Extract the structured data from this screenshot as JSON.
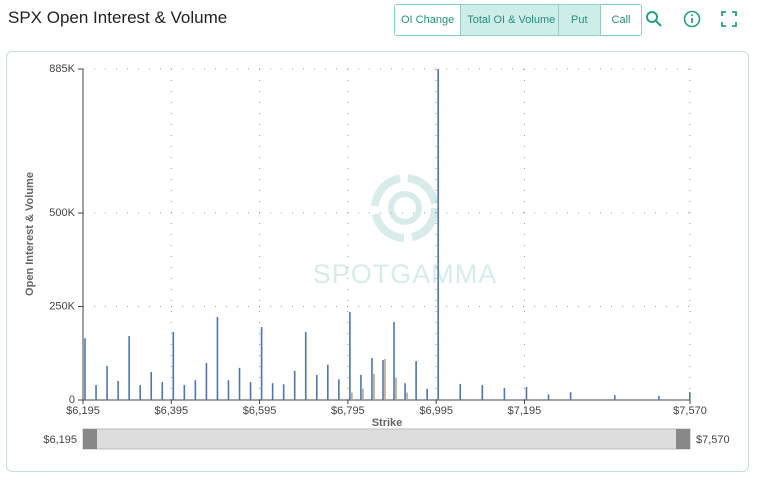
{
  "header": {
    "title": "SPX Open Interest & Volume"
  },
  "toolbar": {
    "mode_buttons": [
      "OI Change",
      "Total OI & Volume"
    ],
    "side_buttons": [
      "Put",
      "Call"
    ]
  },
  "chart_data": {
    "type": "bar",
    "watermark": "SPOTGAMMA",
    "y_label": "Open Interest & Volume",
    "x_label": "Strike",
    "x": [
      6200,
      6225,
      6250,
      6275,
      6300,
      6325,
      6350,
      6375,
      6400,
      6425,
      6450,
      6475,
      6500,
      6525,
      6550,
      6575,
      6600,
      6625,
      6650,
      6675,
      6700,
      6725,
      6750,
      6775,
      6800,
      6825,
      6850,
      6875,
      6900,
      6925,
      6950,
      6975,
      7000,
      7050,
      7100,
      7150,
      7200,
      7250,
      7300,
      7400,
      7500,
      7570
    ],
    "series": [
      {
        "color": "#4f76a8",
        "values": [
          165000,
          40000,
          91000,
          51000,
          171000,
          40000,
          75000,
          48000,
          182000,
          40000,
          53000,
          99000,
          222000,
          53000,
          86000,
          48000,
          195000,
          45000,
          42000,
          78000,
          182000,
          67000,
          94000,
          55000,
          235000,
          67000,
          112000,
          107000,
          209000,
          45000,
          104000,
          30000,
          885000,
          43000,
          40000,
          32000,
          35000,
          15000,
          21000,
          13000,
          11000,
          21000
        ]
      },
      {
        "color": "#b5a68e",
        "values": [
          0,
          0,
          0,
          0,
          0,
          0,
          0,
          0,
          0,
          0,
          0,
          0,
          0,
          0,
          0,
          0,
          0,
          0,
          0,
          0,
          0,
          0,
          0,
          0,
          20000,
          30000,
          70000,
          110000,
          60000,
          20000,
          0,
          0,
          0,
          0,
          0,
          0,
          0,
          0,
          0,
          0,
          0,
          0
        ]
      }
    ],
    "xlim": [
      6195,
      7570
    ],
    "ylim": [
      0,
      885000
    ],
    "xticks": [
      {
        "value": 6195,
        "label": "$6,195"
      },
      {
        "value": 6395,
        "label": "$6,395"
      },
      {
        "value": 6595,
        "label": "$6,595"
      },
      {
        "value": 6795,
        "label": "$6,795"
      },
      {
        "value": 6995,
        "label": "$6,995"
      },
      {
        "value": 7195,
        "label": "$7,195"
      },
      {
        "value": 7570,
        "label": "$7,570"
      }
    ],
    "yticks": [
      0,
      {
        "value": 250000,
        "label": "250K"
      },
      {
        "value": 500000,
        "label": "500K"
      },
      {
        "value": 885000,
        "label": "885K"
      }
    ],
    "grid": true
  }
}
